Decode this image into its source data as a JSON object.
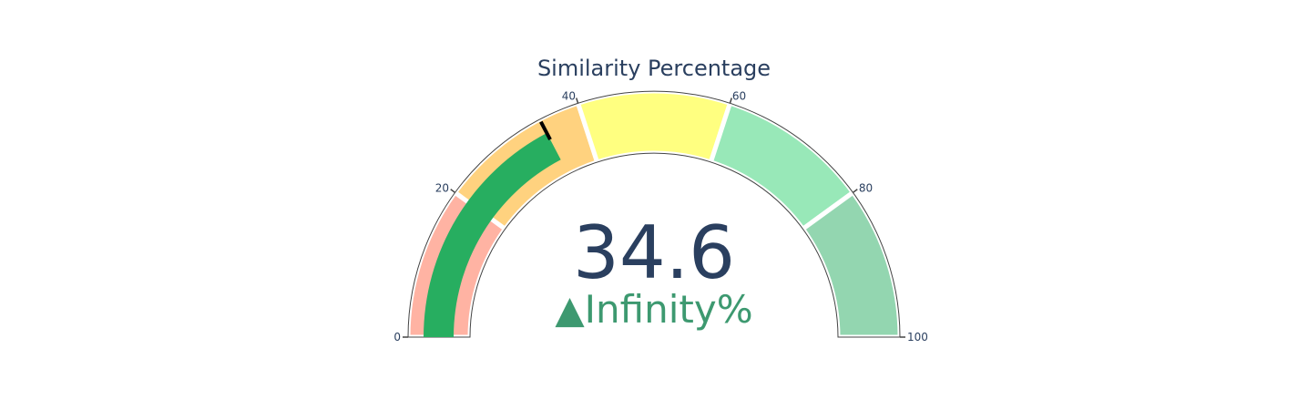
{
  "chart_data": {
    "type": "gauge",
    "title": "Similarity Percentage",
    "value": 34.6,
    "value_label": "34.6",
    "delta": {
      "symbol": "▲",
      "text": "Infinity%",
      "color": "#3d9970"
    },
    "axis_range": [
      0,
      100
    ],
    "ticks": [
      {
        "value": 0,
        "label": "0"
      },
      {
        "value": 20,
        "label": "20"
      },
      {
        "value": 40,
        "label": "40"
      },
      {
        "value": 60,
        "label": "60"
      },
      {
        "value": 80,
        "label": "80"
      },
      {
        "value": 100,
        "label": "100"
      }
    ],
    "steps": [
      {
        "range": [
          0,
          20
        ],
        "color": "#ffb3a3"
      },
      {
        "range": [
          20,
          40
        ],
        "color": "#ffd27f"
      },
      {
        "range": [
          40,
          60
        ],
        "color": "#ffff80"
      },
      {
        "range": [
          60,
          80
        ],
        "color": "#98e8b8"
      },
      {
        "range": [
          80,
          100
        ],
        "color": "#93d6b0"
      }
    ],
    "bar_color": "#27ae60",
    "threshold": {
      "value": 34.6,
      "color": "#000000"
    }
  }
}
